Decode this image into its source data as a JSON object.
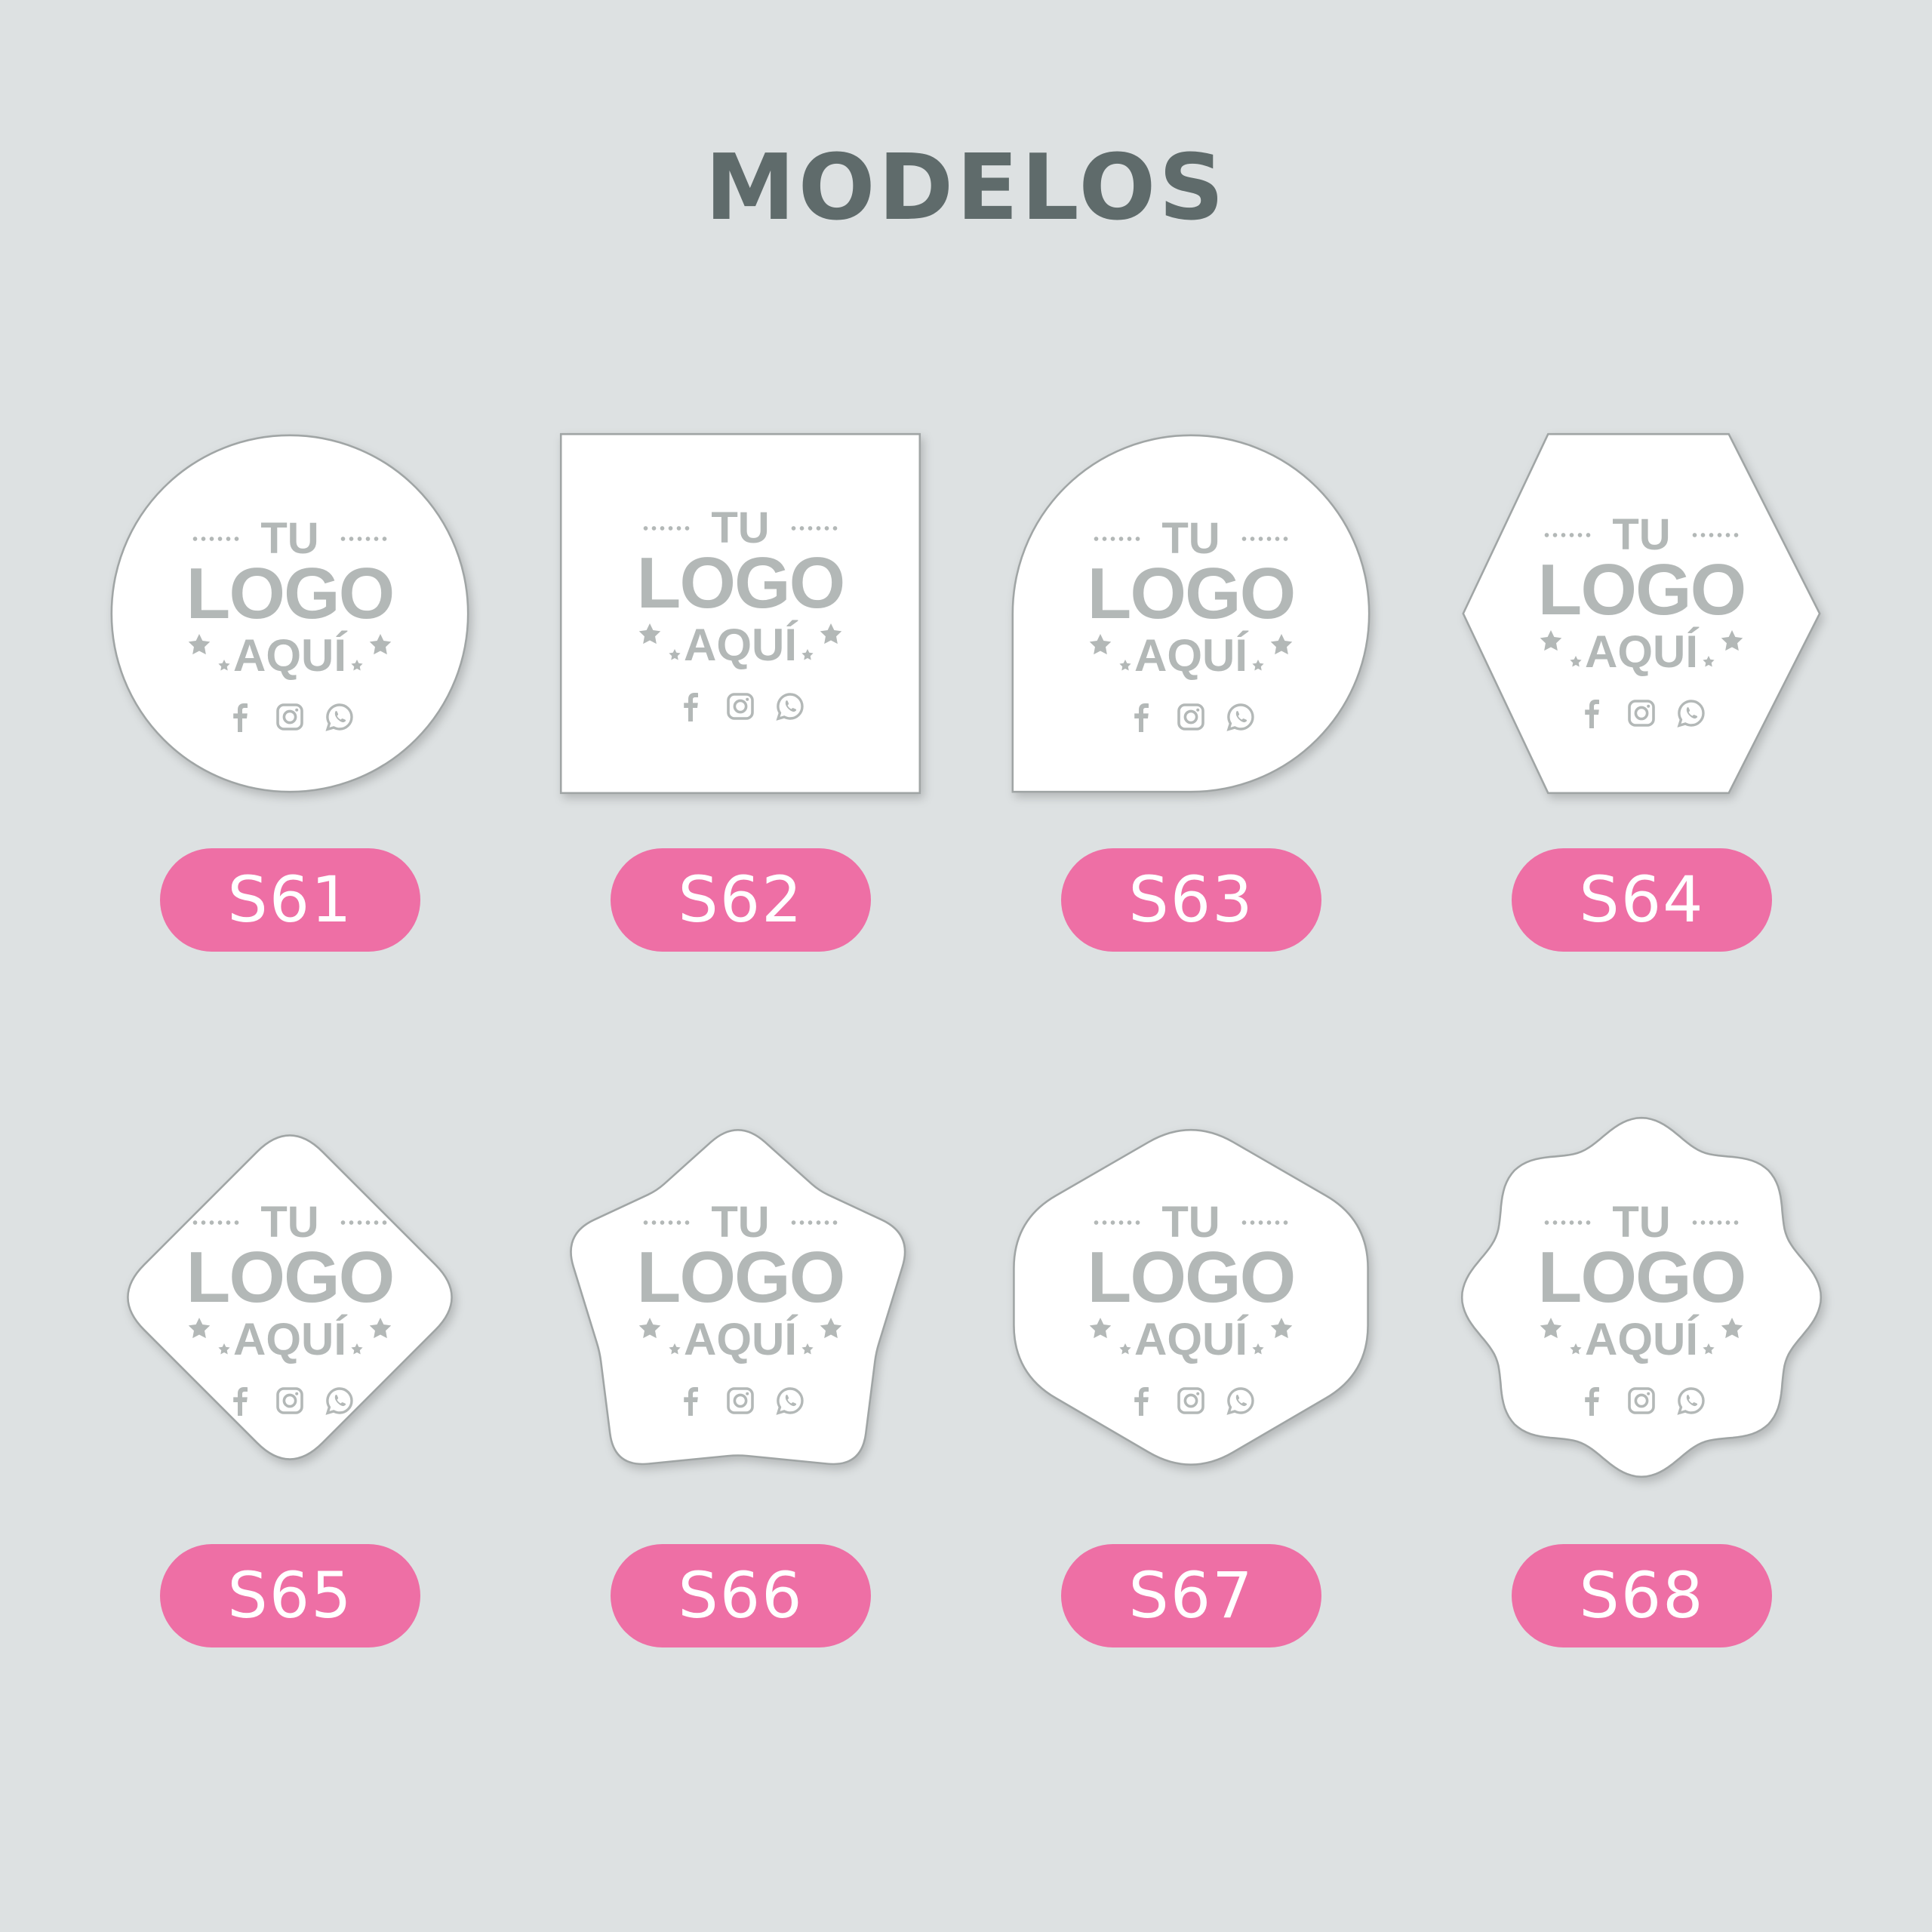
{
  "title": "MODELOS",
  "colors": {
    "background": "#dde1e2",
    "title": "#5f6b6b",
    "pill": "#ee6fa5",
    "logo_text": "#b3b8b7",
    "shape_fill": "#ffffff",
    "shape_stroke": "#a0a5a5"
  },
  "logo_placeholder": {
    "line1": "TU",
    "line2": "LOGO",
    "line3": "AQUÍ",
    "icons": [
      "facebook-icon",
      "instagram-icon",
      "whatsapp-icon"
    ]
  },
  "models": [
    {
      "code": "S61",
      "shape": "circle"
    },
    {
      "code": "S62",
      "shape": "square"
    },
    {
      "code": "S63",
      "shape": "teardrop"
    },
    {
      "code": "S64",
      "shape": "hexagon-horizontal"
    },
    {
      "code": "S65",
      "shape": "rounded-diamond"
    },
    {
      "code": "S66",
      "shape": "rounded-star"
    },
    {
      "code": "S67",
      "shape": "rounded-hexagon-vertical"
    },
    {
      "code": "S68",
      "shape": "wavy-circle"
    }
  ]
}
